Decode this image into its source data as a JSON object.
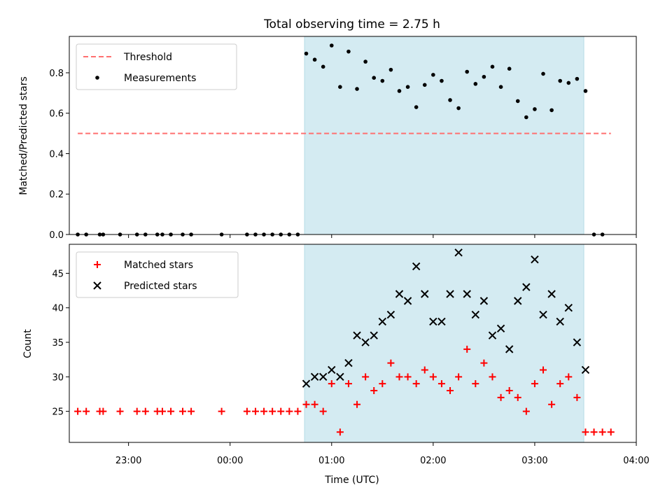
{
  "chart_data": {
    "title": "Total observing time = 2.75 h",
    "xlabel": "Time (UTC)",
    "x_ticks": [
      "23:00",
      "00:00",
      "01:00",
      "02:00",
      "03:00",
      "04:00"
    ],
    "x_range": [
      "22:25",
      "04:00"
    ],
    "highlight_band": {
      "start": "00:44",
      "end": "03:29",
      "color": "#d4ebf2"
    },
    "panels": [
      {
        "type": "scatter",
        "ylabel": "Matched/Predicted stars",
        "ylim": [
          0,
          0.98
        ],
        "y_ticks": [
          "0.0",
          "0.2",
          "0.4",
          "0.6",
          "0.8"
        ],
        "legend_position": "upper-left",
        "series": [
          {
            "name": "Threshold",
            "style": "dashed-line",
            "color": "#ff7070",
            "x": [
              "22:30",
              "03:45"
            ],
            "y": [
              0.5,
              0.5
            ]
          },
          {
            "name": "Measurements",
            "style": "dot",
            "color": "#000000",
            "x": [
              "22:30",
              "22:35",
              "22:43",
              "22:45",
              "22:55",
              "23:05",
              "23:10",
              "23:17",
              "23:20",
              "23:25",
              "23:32",
              "23:37",
              "23:55",
              "00:10",
              "00:15",
              "00:20",
              "00:25",
              "00:30",
              "00:35",
              "00:40",
              "00:45",
              "00:50",
              "00:55",
              "01:00",
              "01:05",
              "01:10",
              "01:15",
              "01:20",
              "01:25",
              "01:30",
              "01:35",
              "01:40",
              "01:45",
              "01:50",
              "01:55",
              "02:00",
              "02:05",
              "02:10",
              "02:15",
              "02:20",
              "02:25",
              "02:30",
              "02:35",
              "02:40",
              "02:45",
              "02:50",
              "02:55",
              "03:00",
              "03:05",
              "03:10",
              "03:15",
              "03:20",
              "03:25",
              "03:30",
              "03:35",
              "03:40"
            ],
            "y": [
              0,
              0,
              0,
              0,
              0,
              0,
              0,
              0,
              0,
              0,
              0,
              0,
              0,
              0,
              0,
              0,
              0,
              0,
              0,
              0,
              0.895,
              0.865,
              0.83,
              0.935,
              0.73,
              0.905,
              0.72,
              0.855,
              0.775,
              0.76,
              0.815,
              0.71,
              0.73,
              0.63,
              0.74,
              0.79,
              0.76,
              0.665,
              0.625,
              0.805,
              0.745,
              0.78,
              0.83,
              0.73,
              0.82,
              0.66,
              0.58,
              0.62,
              0.795,
              0.615,
              0.76,
              0.75,
              0.77,
              0.71,
              0,
              0
            ]
          }
        ]
      },
      {
        "type": "scatter",
        "ylabel": "Count",
        "ylim": [
          20.5,
          49.2
        ],
        "y_ticks": [
          "25",
          "30",
          "35",
          "40",
          "45"
        ],
        "legend_position": "upper-left",
        "series": [
          {
            "name": "Matched stars",
            "marker": "plus",
            "color": "#ff0000",
            "x": [
              "22:30",
              "22:35",
              "22:43",
              "22:45",
              "22:55",
              "23:05",
              "23:10",
              "23:17",
              "23:20",
              "23:25",
              "23:32",
              "23:37",
              "23:55",
              "00:10",
              "00:15",
              "00:20",
              "00:25",
              "00:30",
              "00:35",
              "00:40",
              "00:45",
              "00:50",
              "00:55",
              "01:00",
              "01:05",
              "01:10",
              "01:15",
              "01:20",
              "01:25",
              "01:30",
              "01:35",
              "01:40",
              "01:45",
              "01:50",
              "01:55",
              "02:00",
              "02:05",
              "02:10",
              "02:15",
              "02:20",
              "02:25",
              "02:30",
              "02:35",
              "02:40",
              "02:45",
              "02:50",
              "02:55",
              "03:00",
              "03:05",
              "03:10",
              "03:15",
              "03:20",
              "03:25",
              "03:30",
              "03:35",
              "03:40",
              "03:45"
            ],
            "y": [
              25,
              25,
              25,
              25,
              25,
              25,
              25,
              25,
              25,
              25,
              25,
              25,
              25,
              25,
              25,
              25,
              25,
              25,
              25,
              25,
              26,
              26,
              25,
              29,
              22,
              29,
              26,
              30,
              28,
              29,
              32,
              30,
              30,
              29,
              31,
              30,
              29,
              28,
              30,
              34,
              29,
              32,
              30,
              27,
              28,
              27,
              25,
              29,
              31,
              26,
              29,
              30,
              27,
              22,
              22,
              22,
              22
            ]
          },
          {
            "name": "Predicted stars",
            "marker": "x",
            "color": "#000000",
            "x": [
              "00:45",
              "00:50",
              "00:55",
              "01:00",
              "01:05",
              "01:10",
              "01:15",
              "01:20",
              "01:25",
              "01:30",
              "01:35",
              "01:40",
              "01:45",
              "01:50",
              "01:55",
              "02:00",
              "02:05",
              "02:10",
              "02:15",
              "02:20",
              "02:25",
              "02:30",
              "02:35",
              "02:40",
              "02:45",
              "02:50",
              "02:55",
              "03:00",
              "03:05",
              "03:10",
              "03:15",
              "03:20",
              "03:25",
              "03:30"
            ],
            "y": [
              29,
              30,
              30,
              31,
              30,
              32,
              36,
              35,
              36,
              38,
              39,
              42,
              41,
              46,
              42,
              38,
              38,
              42,
              48,
              42,
              39,
              41,
              36,
              37,
              34,
              41,
              43,
              47,
              39,
              42,
              38,
              40,
              35,
              31
            ]
          }
        ]
      }
    ]
  }
}
